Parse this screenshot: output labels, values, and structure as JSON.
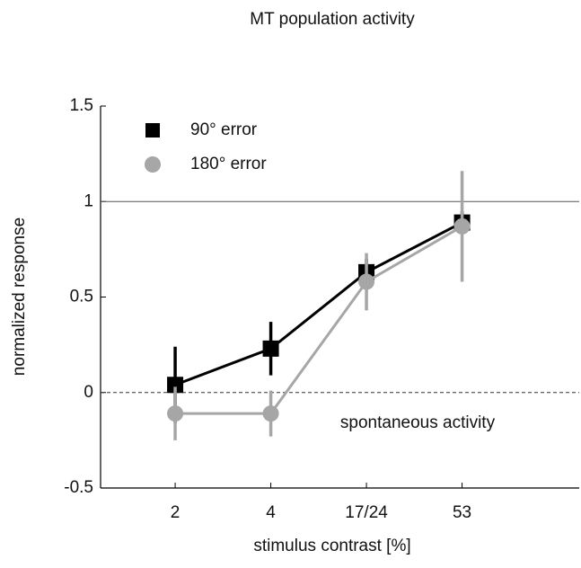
{
  "chart_data": {
    "type": "line",
    "title": "MT population activity",
    "xlabel": "stimulus contrast [%]",
    "ylabel": "normalized response",
    "categories": [
      "2",
      "4",
      "17/24",
      "53"
    ],
    "series": [
      {
        "name": "90° error",
        "color": "#000000",
        "marker": "square",
        "values": [
          0.04,
          0.23,
          0.63,
          0.89
        ],
        "errors": [
          0.2,
          0.14,
          0.07,
          0.06
        ]
      },
      {
        "name": "180° error",
        "color": "#a6a6a6",
        "marker": "circle",
        "values": [
          -0.11,
          -0.11,
          0.58,
          0.87
        ],
        "errors": [
          0.14,
          0.12,
          0.15,
          0.29
        ]
      }
    ],
    "ylim": [
      -0.5,
      1.5
    ],
    "yticks": [
      -0.5,
      0,
      0.5,
      1,
      1.5
    ],
    "hlines": [
      {
        "value": 1,
        "style": "solid"
      },
      {
        "value": 0,
        "style": "dashed"
      }
    ],
    "annotations": [
      {
        "text": "spontaneous activity"
      }
    ],
    "legend": "upper left"
  }
}
